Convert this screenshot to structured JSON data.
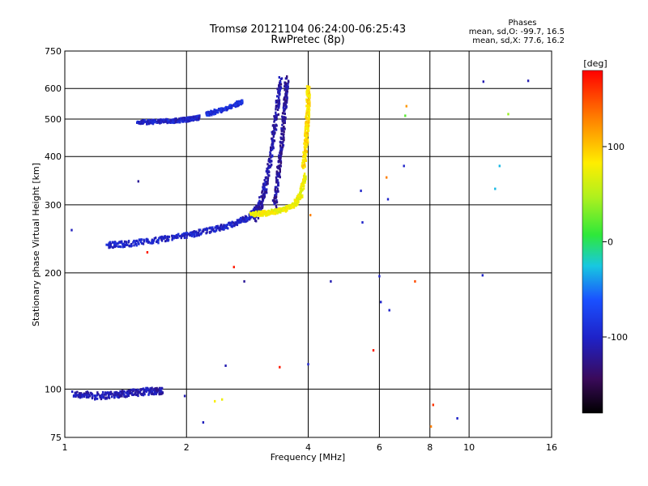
{
  "header": {
    "title_line1": "Tromsø 20121104 06:24:00-06:25:43",
    "title_line2": "RwPretec (8p)"
  },
  "phases_box": {
    "heading": "Phases",
    "line_o": "mean, sd,O: -99.7, 16.5",
    "line_x": "mean, sd,X:  77.6, 16.2"
  },
  "colorbar": {
    "unit": "[deg]",
    "ticks": [
      "100",
      "0",
      "-100"
    ],
    "tick_values": [
      100,
      0,
      -100
    ],
    "range": [
      -180,
      180
    ]
  },
  "chart_data": {
    "type": "scatter",
    "title": "Tromsø 20121104 06:24:00-06:25:43",
    "subtitle": "RwPretec (8p)",
    "xlabel": "Frequency [MHz]",
    "ylabel": "Stationary phase Virtual Height [km]",
    "xscale": "log",
    "yscale": "log",
    "xlim": [
      1,
      16
    ],
    "ylim": [
      75,
      750
    ],
    "xticks": [
      1,
      2,
      4,
      6,
      8,
      10,
      16
    ],
    "xtick_labels": [
      "1",
      "2",
      "4",
      "6",
      "8",
      "10",
      "16"
    ],
    "yticks": [
      75,
      100,
      200,
      300,
      400,
      500,
      600,
      750
    ],
    "ytick_labels": [
      "75",
      "100",
      "200",
      "300",
      "400",
      "500",
      "600",
      "750"
    ],
    "grid": true,
    "color_encoding": "phase [deg]",
    "traces": [
      {
        "x": [
          1.05,
          1.2,
          1.35,
          1.5,
          1.65,
          1.75
        ],
        "y": [
          97,
          96,
          97,
          98,
          99,
          99
        ],
        "phase": -110,
        "jitter": 2
      },
      {
        "x": [
          1.52,
          1.65,
          1.8,
          1.95,
          2.05,
          2.15
        ],
        "y": [
          490,
          492,
          494,
          497,
          500,
          505
        ],
        "phase": -100,
        "jitter": 6
      },
      {
        "x": [
          2.25,
          2.4,
          2.6,
          2.75
        ],
        "y": [
          515,
          525,
          540,
          555
        ],
        "phase": -90,
        "jitter": 6
      },
      {
        "x": [
          1.28,
          1.45,
          1.7,
          2.0,
          2.3,
          2.6,
          2.85,
          3.0
        ],
        "y": [
          236,
          238,
          243,
          250,
          258,
          267,
          278,
          295
        ],
        "phase": -100,
        "jitter": 4
      },
      {
        "x": [
          2.95,
          3.05,
          3.15,
          3.25,
          3.35,
          3.42
        ],
        "y": [
          280,
          300,
          340,
          420,
          530,
          640
        ],
        "phase": -115,
        "jitter": 12
      },
      {
        "x": [
          3.3,
          3.38,
          3.45,
          3.5,
          3.55
        ],
        "y": [
          300,
          360,
          440,
          540,
          640
        ],
        "phase": -120,
        "jitter": 12
      },
      {
        "x": [
          2.9,
          3.1,
          3.3,
          3.5,
          3.7,
          3.85,
          3.92
        ],
        "y": [
          283,
          285,
          288,
          292,
          300,
          320,
          360
        ],
        "phase": 75,
        "jitter": 4
      },
      {
        "x": [
          3.9,
          3.95,
          3.98,
          4.0,
          4.0
        ],
        "y": [
          380,
          430,
          490,
          550,
          610
        ],
        "phase": 90,
        "jitter": 10
      }
    ],
    "points": [
      {
        "x": 1.04,
        "y": 258,
        "phase": -105
      },
      {
        "x": 1.52,
        "y": 345,
        "phase": -120
      },
      {
        "x": 1.6,
        "y": 226,
        "phase": 170
      },
      {
        "x": 1.98,
        "y": 96,
        "phase": -110
      },
      {
        "x": 2.2,
        "y": 82,
        "phase": -105
      },
      {
        "x": 2.35,
        "y": 93,
        "phase": 80
      },
      {
        "x": 2.45,
        "y": 94,
        "phase": 75
      },
      {
        "x": 2.5,
        "y": 115,
        "phase": -110
      },
      {
        "x": 2.62,
        "y": 207,
        "phase": 170
      },
      {
        "x": 2.78,
        "y": 190,
        "phase": -120
      },
      {
        "x": 3.4,
        "y": 114,
        "phase": 170
      },
      {
        "x": 4.0,
        "y": 116,
        "phase": -100
      },
      {
        "x": 4.05,
        "y": 282,
        "phase": 130
      },
      {
        "x": 4.55,
        "y": 190,
        "phase": -110
      },
      {
        "x": 5.4,
        "y": 326,
        "phase": -100
      },
      {
        "x": 5.45,
        "y": 270,
        "phase": -100
      },
      {
        "x": 5.8,
        "y": 126,
        "phase": 170
      },
      {
        "x": 6.0,
        "y": 196,
        "phase": -100
      },
      {
        "x": 6.05,
        "y": 168,
        "phase": -100
      },
      {
        "x": 6.25,
        "y": 353,
        "phase": 130
      },
      {
        "x": 6.3,
        "y": 310,
        "phase": -100
      },
      {
        "x": 6.35,
        "y": 160,
        "phase": -100
      },
      {
        "x": 6.9,
        "y": 378,
        "phase": -100
      },
      {
        "x": 6.95,
        "y": 510,
        "phase": 20
      },
      {
        "x": 7.0,
        "y": 540,
        "phase": 120
      },
      {
        "x": 7.35,
        "y": 190,
        "phase": 150
      },
      {
        "x": 8.05,
        "y": 80,
        "phase": 130
      },
      {
        "x": 8.15,
        "y": 91,
        "phase": 160
      },
      {
        "x": 9.35,
        "y": 84,
        "phase": -100
      },
      {
        "x": 10.8,
        "y": 197,
        "phase": -100
      },
      {
        "x": 10.85,
        "y": 625,
        "phase": -110
      },
      {
        "x": 11.6,
        "y": 330,
        "phase": -30
      },
      {
        "x": 11.9,
        "y": 378,
        "phase": -30
      },
      {
        "x": 12.5,
        "y": 515,
        "phase": 40
      },
      {
        "x": 14.0,
        "y": 628,
        "phase": -110
      }
    ]
  }
}
